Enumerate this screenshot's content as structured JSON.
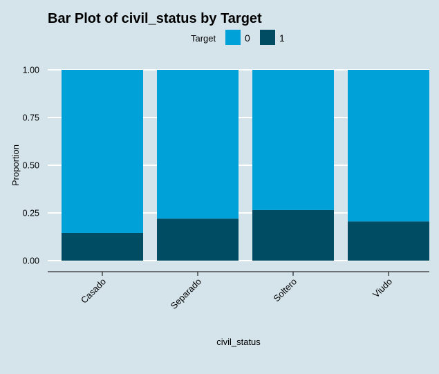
{
  "chart_data": {
    "type": "bar",
    "stacked": true,
    "title": "Bar Plot of civil_status by Target",
    "xlabel": "civil_status",
    "ylabel": "Proportion",
    "ylim": [
      0,
      1
    ],
    "yticks": [
      "0.00",
      "0.25",
      "0.50",
      "0.75",
      "1.00"
    ],
    "categories": [
      "Casado",
      "Separado",
      "Soltero",
      "Viudo"
    ],
    "legend": {
      "title": "Target",
      "position": "top"
    },
    "series": [
      {
        "name": "0",
        "color": "#00a0d8",
        "values": [
          0.855,
          0.78,
          0.735,
          0.795
        ]
      },
      {
        "name": "1",
        "color": "#004c63",
        "values": [
          0.145,
          0.22,
          0.265,
          0.205
        ]
      }
    ],
    "grid": true
  }
}
